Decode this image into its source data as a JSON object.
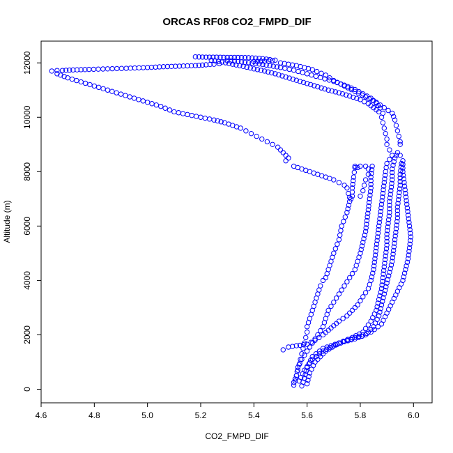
{
  "chart_data": {
    "type": "scatter",
    "title": "ORCAS RF08 CO2_FMPD_DIF",
    "xlabel": "CO2_FMPD_DIF",
    "ylabel": "Altitude (m)",
    "xlim": [
      4.6,
      6.07
    ],
    "ylim": [
      -500,
      12800
    ],
    "xticks": [
      "4.6",
      "4.8",
      "5.0",
      "5.2",
      "5.4",
      "5.6",
      "5.8",
      "6.0"
    ],
    "yticks": [
      "0",
      "2000",
      "4000",
      "6000",
      "8000",
      "10000",
      "12000"
    ],
    "grid": false,
    "legend": "none",
    "marker": "open-circle",
    "color": "#0000ff",
    "series": [
      {
        "points": [
          [
            5.55,
            150
          ],
          [
            5.555,
            300
          ],
          [
            5.56,
            500
          ],
          [
            5.565,
            700
          ],
          [
            5.57,
            900
          ],
          [
            5.575,
            1100
          ],
          [
            5.58,
            1300
          ],
          [
            5.585,
            1500
          ],
          [
            5.59,
            1700
          ],
          [
            5.595,
            1900
          ],
          [
            5.6,
            2100
          ],
          [
            5.6,
            2300
          ],
          [
            5.61,
            2600
          ],
          [
            5.62,
            2900
          ],
          [
            5.63,
            3200
          ],
          [
            5.64,
            3500
          ],
          [
            5.65,
            3800
          ],
          [
            5.66,
            4000
          ],
          [
            5.67,
            4100
          ],
          [
            5.68,
            4400
          ],
          [
            5.69,
            4700
          ],
          [
            5.7,
            5000
          ],
          [
            5.72,
            5500
          ],
          [
            5.73,
            6000
          ],
          [
            5.75,
            6500
          ],
          [
            5.76,
            6900
          ],
          [
            5.77,
            7100
          ],
          [
            5.77,
            7400
          ],
          [
            5.775,
            7800
          ],
          [
            5.78,
            8150
          ],
          [
            5.79,
            8150
          ]
        ]
      },
      {
        "points": [
          [
            5.51,
            1450
          ],
          [
            5.53,
            1550
          ],
          [
            5.56,
            1600
          ],
          [
            5.6,
            1650
          ],
          [
            5.63,
            1800
          ],
          [
            5.66,
            2000
          ],
          [
            5.69,
            2250
          ],
          [
            5.72,
            2500
          ],
          [
            5.75,
            2700
          ],
          [
            5.77,
            2900
          ],
          [
            5.79,
            3100
          ],
          [
            5.81,
            3400
          ],
          [
            5.83,
            3700
          ],
          [
            5.84,
            4000
          ],
          [
            5.85,
            4400
          ],
          [
            5.855,
            4800
          ],
          [
            5.86,
            5200
          ],
          [
            5.865,
            5600
          ],
          [
            5.87,
            6000
          ],
          [
            5.875,
            6400
          ],
          [
            5.88,
            6800
          ],
          [
            5.885,
            7200
          ],
          [
            5.89,
            7600
          ],
          [
            5.895,
            8000
          ],
          [
            5.9,
            8300
          ],
          [
            5.92,
            8600
          ],
          [
            5.95,
            8600
          ]
        ]
      },
      {
        "points": [
          [
            5.58,
            120
          ],
          [
            5.59,
            400
          ],
          [
            5.6,
            800
          ],
          [
            5.62,
            1200
          ],
          [
            5.66,
            1500
          ],
          [
            5.72,
            1700
          ],
          [
            5.78,
            1900
          ],
          [
            5.84,
            2100
          ],
          [
            5.88,
            2400
          ],
          [
            5.9,
            2800
          ],
          [
            5.92,
            3200
          ],
          [
            5.94,
            3600
          ],
          [
            5.96,
            4000
          ],
          [
            5.97,
            4400
          ],
          [
            5.98,
            4800
          ],
          [
            5.985,
            5200
          ],
          [
            5.99,
            5600
          ],
          [
            5.985,
            6000
          ],
          [
            5.98,
            6400
          ],
          [
            5.975,
            6800
          ],
          [
            5.97,
            7200
          ],
          [
            5.965,
            7600
          ],
          [
            5.96,
            8000
          ],
          [
            5.96,
            8400
          ]
        ]
      },
      {
        "points": [
          [
            5.57,
            300
          ],
          [
            5.59,
            700
          ],
          [
            5.62,
            1100
          ],
          [
            5.66,
            1400
          ],
          [
            5.7,
            1600
          ],
          [
            5.74,
            1750
          ],
          [
            5.78,
            1850
          ],
          [
            5.82,
            2000
          ],
          [
            5.85,
            2300
          ],
          [
            5.87,
            2700
          ],
          [
            5.88,
            3100
          ],
          [
            5.89,
            3500
          ],
          [
            5.9,
            3900
          ],
          [
            5.91,
            4300
          ],
          [
            5.92,
            4700
          ],
          [
            5.925,
            5100
          ],
          [
            5.93,
            5500
          ],
          [
            5.935,
            5900
          ],
          [
            5.94,
            6300
          ],
          [
            5.94,
            6700
          ],
          [
            5.945,
            7100
          ],
          [
            5.95,
            7500
          ],
          [
            5.95,
            7900
          ],
          [
            5.955,
            8300
          ]
        ]
      },
      {
        "points": [
          [
            5.6,
            200
          ],
          [
            5.61,
            600
          ],
          [
            5.63,
            1000
          ],
          [
            5.67,
            1400
          ],
          [
            5.72,
            1700
          ],
          [
            5.77,
            1900
          ],
          [
            5.81,
            2100
          ],
          [
            5.84,
            2500
          ],
          [
            5.86,
            2900
          ],
          [
            5.87,
            3300
          ],
          [
            5.88,
            3700
          ],
          [
            5.885,
            4100
          ],
          [
            5.89,
            4500
          ],
          [
            5.895,
            4900
          ],
          [
            5.9,
            5300
          ],
          [
            5.9,
            5700
          ],
          [
            5.905,
            6100
          ],
          [
            5.91,
            6500
          ],
          [
            5.91,
            6900
          ],
          [
            5.915,
            7300
          ],
          [
            5.92,
            7700
          ],
          [
            5.92,
            8100
          ],
          [
            5.93,
            8500
          ],
          [
            5.94,
            8700
          ]
        ]
      },
      {
        "points": [
          [
            5.55,
            250
          ],
          [
            5.56,
            500
          ],
          [
            5.565,
            800
          ],
          [
            5.58,
            1100
          ],
          [
            5.6,
            1400
          ],
          [
            5.62,
            1700
          ],
          [
            5.64,
            2000
          ],
          [
            5.66,
            2300
          ],
          [
            5.67,
            2600
          ],
          [
            5.68,
            2900
          ],
          [
            5.7,
            3200
          ],
          [
            5.72,
            3500
          ],
          [
            5.74,
            3800
          ],
          [
            5.76,
            4100
          ],
          [
            5.78,
            4400
          ],
          [
            5.79,
            4700
          ],
          [
            5.8,
            5000
          ],
          [
            5.81,
            5400
          ],
          [
            5.82,
            5800
          ],
          [
            5.825,
            6200
          ],
          [
            5.83,
            6600
          ],
          [
            5.835,
            7000
          ],
          [
            5.84,
            7400
          ],
          [
            5.84,
            7800
          ],
          [
            5.845,
            8200
          ]
        ]
      },
      {
        "points": [
          [
            5.8,
            7100
          ],
          [
            5.81,
            7300
          ],
          [
            5.815,
            7500
          ],
          [
            5.82,
            7700
          ],
          [
            5.83,
            7900
          ],
          [
            5.83,
            8100
          ],
          [
            5.82,
            8200
          ],
          [
            5.8,
            8200
          ],
          [
            5.78,
            8200
          ]
        ]
      },
      {
        "points": [
          [
            5.52,
            8400
          ],
          [
            5.53,
            8500
          ],
          [
            5.52,
            8600
          ],
          [
            5.51,
            8700
          ],
          [
            5.5,
            8800
          ],
          [
            5.49,
            8900
          ],
          [
            5.47,
            9000
          ],
          [
            5.45,
            9100
          ],
          [
            5.43,
            9200
          ],
          [
            5.41,
            9300
          ],
          [
            5.39,
            9400
          ],
          [
            5.37,
            9500
          ],
          [
            5.35,
            9600
          ],
          [
            5.32,
            9700
          ],
          [
            5.29,
            9800
          ],
          [
            5.25,
            9900
          ],
          [
            5.2,
            10000
          ],
          [
            5.15,
            10100
          ],
          [
            5.1,
            10200
          ],
          [
            5.05,
            10400
          ],
          [
            5.0,
            10550
          ],
          [
            4.95,
            10700
          ],
          [
            4.9,
            10850
          ],
          [
            4.85,
            11000
          ],
          [
            4.8,
            11150
          ],
          [
            4.75,
            11300
          ],
          [
            4.7,
            11450
          ],
          [
            4.66,
            11600
          ],
          [
            4.64,
            11700
          ],
          [
            4.66,
            11720
          ]
        ]
      },
      {
        "points": [
          [
            4.68,
            11720
          ],
          [
            4.72,
            11740
          ],
          [
            4.78,
            11760
          ],
          [
            4.85,
            11780
          ],
          [
            4.92,
            11800
          ],
          [
            5.0,
            11830
          ],
          [
            5.06,
            11860
          ],
          [
            5.12,
            11880
          ],
          [
            5.18,
            11900
          ],
          [
            5.22,
            11930
          ],
          [
            5.25,
            11950
          ],
          [
            5.27,
            11970
          ]
        ]
      },
      {
        "points": [
          [
            5.55,
            8200
          ],
          [
            5.58,
            8100
          ],
          [
            5.61,
            8000
          ],
          [
            5.64,
            7900
          ],
          [
            5.67,
            7800
          ],
          [
            5.7,
            7700
          ],
          [
            5.72,
            7600
          ],
          [
            5.74,
            7500
          ],
          [
            5.75,
            7400
          ],
          [
            5.755,
            7200
          ],
          [
            5.76,
            7050
          ],
          [
            5.765,
            7000
          ]
        ]
      },
      {
        "points": [
          [
            5.18,
            12220
          ],
          [
            5.22,
            12210
          ],
          [
            5.26,
            12210
          ],
          [
            5.3,
            12200
          ],
          [
            5.34,
            12200
          ],
          [
            5.38,
            12190
          ],
          [
            5.42,
            12170
          ],
          [
            5.46,
            12120
          ],
          [
            5.48,
            12100
          ],
          [
            5.47,
            12080
          ],
          [
            5.44,
            12060
          ],
          [
            5.4,
            12050
          ]
        ]
      },
      {
        "points": [
          [
            5.24,
            12100
          ],
          [
            5.28,
            12030
          ],
          [
            5.32,
            11950
          ],
          [
            5.36,
            11870
          ],
          [
            5.4,
            11780
          ],
          [
            5.44,
            11700
          ],
          [
            5.48,
            11600
          ],
          [
            5.52,
            11480
          ],
          [
            5.56,
            11360
          ],
          [
            5.6,
            11240
          ],
          [
            5.64,
            11120
          ],
          [
            5.68,
            11000
          ],
          [
            5.72,
            10900
          ],
          [
            5.76,
            10780
          ],
          [
            5.8,
            10650
          ],
          [
            5.83,
            10500
          ],
          [
            5.85,
            10350
          ],
          [
            5.87,
            10200
          ],
          [
            5.88,
            10000
          ],
          [
            5.885,
            9800
          ],
          [
            5.89,
            9600
          ],
          [
            5.895,
            9400
          ],
          [
            5.9,
            9200
          ],
          [
            5.9,
            9000
          ],
          [
            5.91,
            8800
          ]
        ]
      },
      {
        "points": [
          [
            5.5,
            12000
          ],
          [
            5.56,
            11900
          ],
          [
            5.62,
            11750
          ],
          [
            5.67,
            11550
          ],
          [
            5.7,
            11350
          ],
          [
            5.74,
            11150
          ],
          [
            5.78,
            10950
          ],
          [
            5.82,
            10750
          ],
          [
            5.86,
            10550
          ],
          [
            5.89,
            10350
          ],
          [
            5.92,
            10150
          ],
          [
            5.93,
            9900
          ],
          [
            5.935,
            9700
          ],
          [
            5.94,
            9500
          ],
          [
            5.945,
            9300
          ],
          [
            5.95,
            9100
          ],
          [
            5.95,
            9000
          ]
        ]
      },
      {
        "points": [
          [
            5.3,
            12080
          ],
          [
            5.34,
            12050
          ],
          [
            5.38,
            12010
          ],
          [
            5.42,
            11960
          ],
          [
            5.46,
            11900
          ],
          [
            5.5,
            11830
          ],
          [
            5.55,
            11730
          ],
          [
            5.6,
            11600
          ],
          [
            5.65,
            11460
          ],
          [
            5.7,
            11320
          ],
          [
            5.74,
            11180
          ],
          [
            5.78,
            11020
          ],
          [
            5.81,
            10860
          ],
          [
            5.84,
            10700
          ],
          [
            5.86,
            10520
          ],
          [
            5.875,
            10340
          ],
          [
            5.885,
            10150
          ]
        ]
      }
    ]
  }
}
